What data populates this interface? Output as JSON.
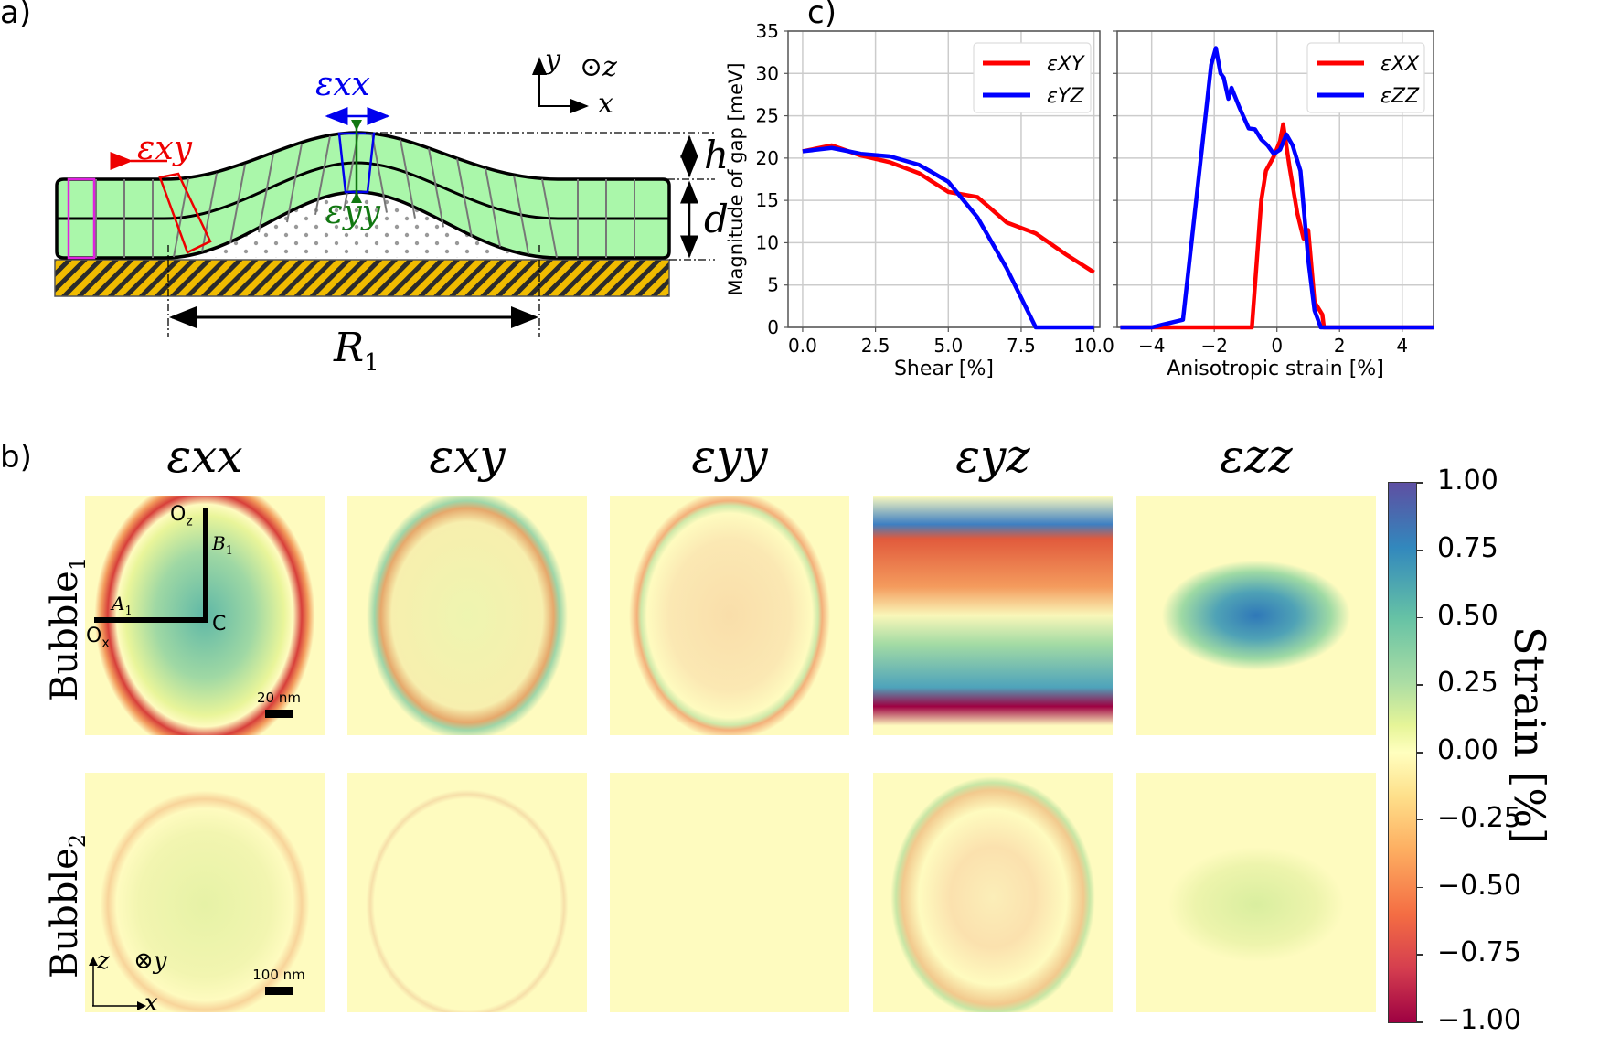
{
  "panels": {
    "a_label": "a)",
    "b_label": "b)",
    "c_label": "c)"
  },
  "diagram_a": {
    "eps_xx": "εxx",
    "eps_xy": "εxy",
    "eps_yy": "εyy",
    "h": "h",
    "d": "d",
    "R1": "R",
    "R1_sub": "1",
    "axis_y": "y",
    "axis_z": "⊙z",
    "axis_x": "x",
    "colors": {
      "membrane": "#aaf7aa",
      "substrate": "#f0bb00",
      "eps_xx": "#0000ee",
      "eps_xy": "#ee0000",
      "eps_yy": "#117711",
      "unit_cell": "#e020e0"
    }
  },
  "heatmaps": {
    "columns": [
      {
        "title": "εxx"
      },
      {
        "title": "εxy"
      },
      {
        "title": "εyy"
      },
      {
        "title": "εyz"
      },
      {
        "title": "εzz"
      }
    ],
    "rows": [
      {
        "label": "Bubble",
        "sub": "1",
        "scale_bar": "20 nm"
      },
      {
        "label": "Bubble",
        "sub": "2",
        "scale_bar": "100 nm"
      }
    ],
    "annotations": {
      "Oz": "O",
      "Oz_sub": "z",
      "Ox": "O",
      "Ox_sub": "x",
      "C": "C",
      "A1": "A",
      "A1_sub": "1",
      "B1": "B",
      "B1_sub": "1",
      "axis_z": "z",
      "axis_y": "⊗y",
      "axis_x": "x"
    },
    "colorbar": {
      "label": "Strain [%]",
      "ticks": [
        "1.00",
        "0.75",
        "0.50",
        "0.25",
        "0.00",
        "−0.25",
        "−0.50",
        "−0.75",
        "−1.00"
      ],
      "range": [
        -1,
        1
      ],
      "colormap": "Spectral"
    }
  },
  "chart_data": [
    {
      "type": "line",
      "title": "",
      "xlabel": "Shear [%]",
      "ylabel": "Magnitude of gap [meV]",
      "xlim": [
        -0.5,
        10.2
      ],
      "ylim": [
        0,
        35
      ],
      "xticks": [
        "0.0",
        "2.5",
        "5.0",
        "7.5",
        "10.0"
      ],
      "xtick_values": [
        0,
        2.5,
        5,
        7.5,
        10
      ],
      "yticks": [
        "0",
        "5",
        "10",
        "15",
        "20",
        "25",
        "30",
        "35"
      ],
      "ytick_values": [
        0,
        5,
        10,
        15,
        20,
        25,
        30,
        35
      ],
      "grid": true,
      "legend": "top-right",
      "series": [
        {
          "name": "εXY",
          "color": "#ff0000",
          "x": [
            0,
            1,
            2,
            3,
            4,
            5,
            6,
            7,
            8,
            9,
            10
          ],
          "y": [
            20.8,
            21.5,
            20.3,
            19.5,
            18.2,
            16.0,
            15.4,
            12.4,
            11.1,
            8.7,
            6.5
          ]
        },
        {
          "name": "εYZ",
          "color": "#0000ff",
          "x": [
            0,
            1,
            2,
            3,
            4,
            5,
            6,
            7,
            8,
            9,
            10
          ],
          "y": [
            20.8,
            21.2,
            20.5,
            20.2,
            19.2,
            17.2,
            13.0,
            7.0,
            0,
            0,
            0
          ]
        }
      ]
    },
    {
      "type": "line",
      "title": "",
      "xlabel": "Anisotropic strain [%]",
      "ylabel": "",
      "xlim": [
        -5.1,
        5
      ],
      "ylim": [
        0,
        35
      ],
      "xticks": [
        "−4",
        "−2",
        "0",
        "2",
        "4"
      ],
      "xtick_values": [
        -4,
        -2,
        0,
        2,
        4
      ],
      "yticks": [],
      "ytick_values": [
        0,
        5,
        10,
        15,
        20,
        25,
        30,
        35
      ],
      "grid": true,
      "legend": "top-right",
      "series": [
        {
          "name": "εXX",
          "color": "#ff0000",
          "x": [
            -5,
            -0.8,
            -0.5,
            -0.35,
            -0.1,
            0.1,
            0.2,
            0.4,
            0.65,
            0.85,
            1.0,
            1.2,
            1.45,
            1.5,
            5
          ],
          "y": [
            0,
            0,
            15,
            18.5,
            20.2,
            22,
            24,
            19,
            13.5,
            10.5,
            11.5,
            3,
            1.5,
            0,
            0
          ]
        },
        {
          "name": "εZZ",
          "color": "#0000ff",
          "x": [
            -5,
            -4,
            -3,
            -2.1,
            -1.95,
            -1.8,
            -1.7,
            -1.55,
            -1.45,
            -1.2,
            -0.9,
            -0.7,
            -0.5,
            -0.3,
            -0.1,
            0.1,
            0.3,
            0.5,
            0.75,
            1.0,
            1.2,
            1.4,
            5
          ],
          "y": [
            0,
            0,
            0.9,
            31,
            33,
            30,
            29.5,
            27,
            28.3,
            26,
            23.5,
            23.4,
            22.2,
            21.5,
            20.5,
            21,
            22.8,
            21.5,
            18.5,
            8,
            2,
            0,
            0
          ]
        }
      ]
    }
  ]
}
